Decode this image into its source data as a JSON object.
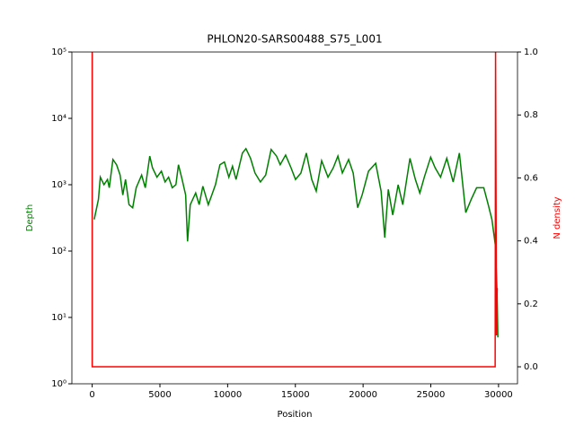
{
  "chart_data": {
    "type": "line",
    "title": "PHLON20-SARS00488_S75_L001",
    "xlabel": "Position",
    "ylabel": "Depth",
    "y2label": "N density",
    "xlim": [
      -1500,
      31400
    ],
    "xticks": [
      0,
      5000,
      10000,
      15000,
      20000,
      25000,
      30000
    ],
    "ylim": [
      1,
      100000
    ],
    "ylog": true,
    "yticks": [
      {
        "value": 1,
        "label": "10⁰"
      },
      {
        "value": 10,
        "label": "10¹"
      },
      {
        "value": 100,
        "label": "10²"
      },
      {
        "value": 1000,
        "label": "10³"
      },
      {
        "value": 10000,
        "label": "10⁴"
      },
      {
        "value": 100000,
        "label": "10⁵"
      }
    ],
    "y2lim": [
      -0.054,
      1.0
    ],
    "y2ticks": [
      {
        "value": 0,
        "label": "0.0"
      },
      {
        "value": 0.2,
        "label": "0.2"
      },
      {
        "value": 0.4,
        "label": "0.4"
      },
      {
        "value": 0.6,
        "label": "0.6"
      },
      {
        "value": 0.8,
        "label": "0.8"
      },
      {
        "value": 1,
        "label": "1.0"
      }
    ],
    "series": [
      {
        "name": "Depth",
        "color": "green",
        "x": [
          150,
          460,
          600,
          870,
          1130,
          1260,
          1530,
          1800,
          2060,
          2260,
          2460,
          2720,
          2990,
          3250,
          3650,
          3920,
          4250,
          4450,
          4780,
          5110,
          5380,
          5640,
          5910,
          6180,
          6370,
          6640,
          6900,
          7040,
          7240,
          7640,
          7900,
          8170,
          8570,
          8830,
          9100,
          9430,
          9760,
          10090,
          10360,
          10620,
          11090,
          11350,
          11690,
          12020,
          12420,
          12810,
          13210,
          13610,
          13880,
          14280,
          14680,
          15010,
          15410,
          15810,
          16210,
          16540,
          16940,
          17410,
          17800,
          18140,
          18470,
          18930,
          19270,
          19600,
          19930,
          20400,
          20930,
          21330,
          21600,
          21860,
          22190,
          22590,
          22930,
          23460,
          23860,
          24190,
          24520,
          24990,
          25320,
          25720,
          26180,
          26650,
          27110,
          27580,
          27980,
          28380,
          28910,
          29240,
          29510,
          29770,
          29900,
          29950
        ],
        "values": [
          300,
          600,
          1300,
          1000,
          1200,
          900,
          2400,
          2000,
          1400,
          700,
          1200,
          500,
          450,
          900,
          1400,
          900,
          2700,
          1800,
          1300,
          1600,
          1100,
          1300,
          900,
          1000,
          2000,
          1200,
          700,
          140,
          500,
          750,
          500,
          950,
          500,
          700,
          1000,
          2000,
          2200,
          1300,
          1900,
          1200,
          3000,
          3500,
          2500,
          1500,
          1100,
          1400,
          3400,
          2700,
          2000,
          2800,
          1800,
          1200,
          1500,
          3000,
          1200,
          800,
          2300,
          1300,
          1800,
          2700,
          1500,
          2400,
          1500,
          450,
          700,
          1600,
          2100,
          800,
          160,
          850,
          350,
          1000,
          500,
          2500,
          1200,
          750,
          1300,
          2600,
          1800,
          1300,
          2500,
          1100,
          3000,
          380,
          600,
          900,
          900,
          500,
          300,
          120,
          20,
          5
        ]
      },
      {
        "name": "N density",
        "color": "red",
        "axis": "y2",
        "x": [
          0,
          0,
          29750,
          29780,
          29850,
          29903
        ],
        "values": [
          1,
          0,
          0,
          1,
          0.1,
          0.25
        ]
      }
    ]
  }
}
